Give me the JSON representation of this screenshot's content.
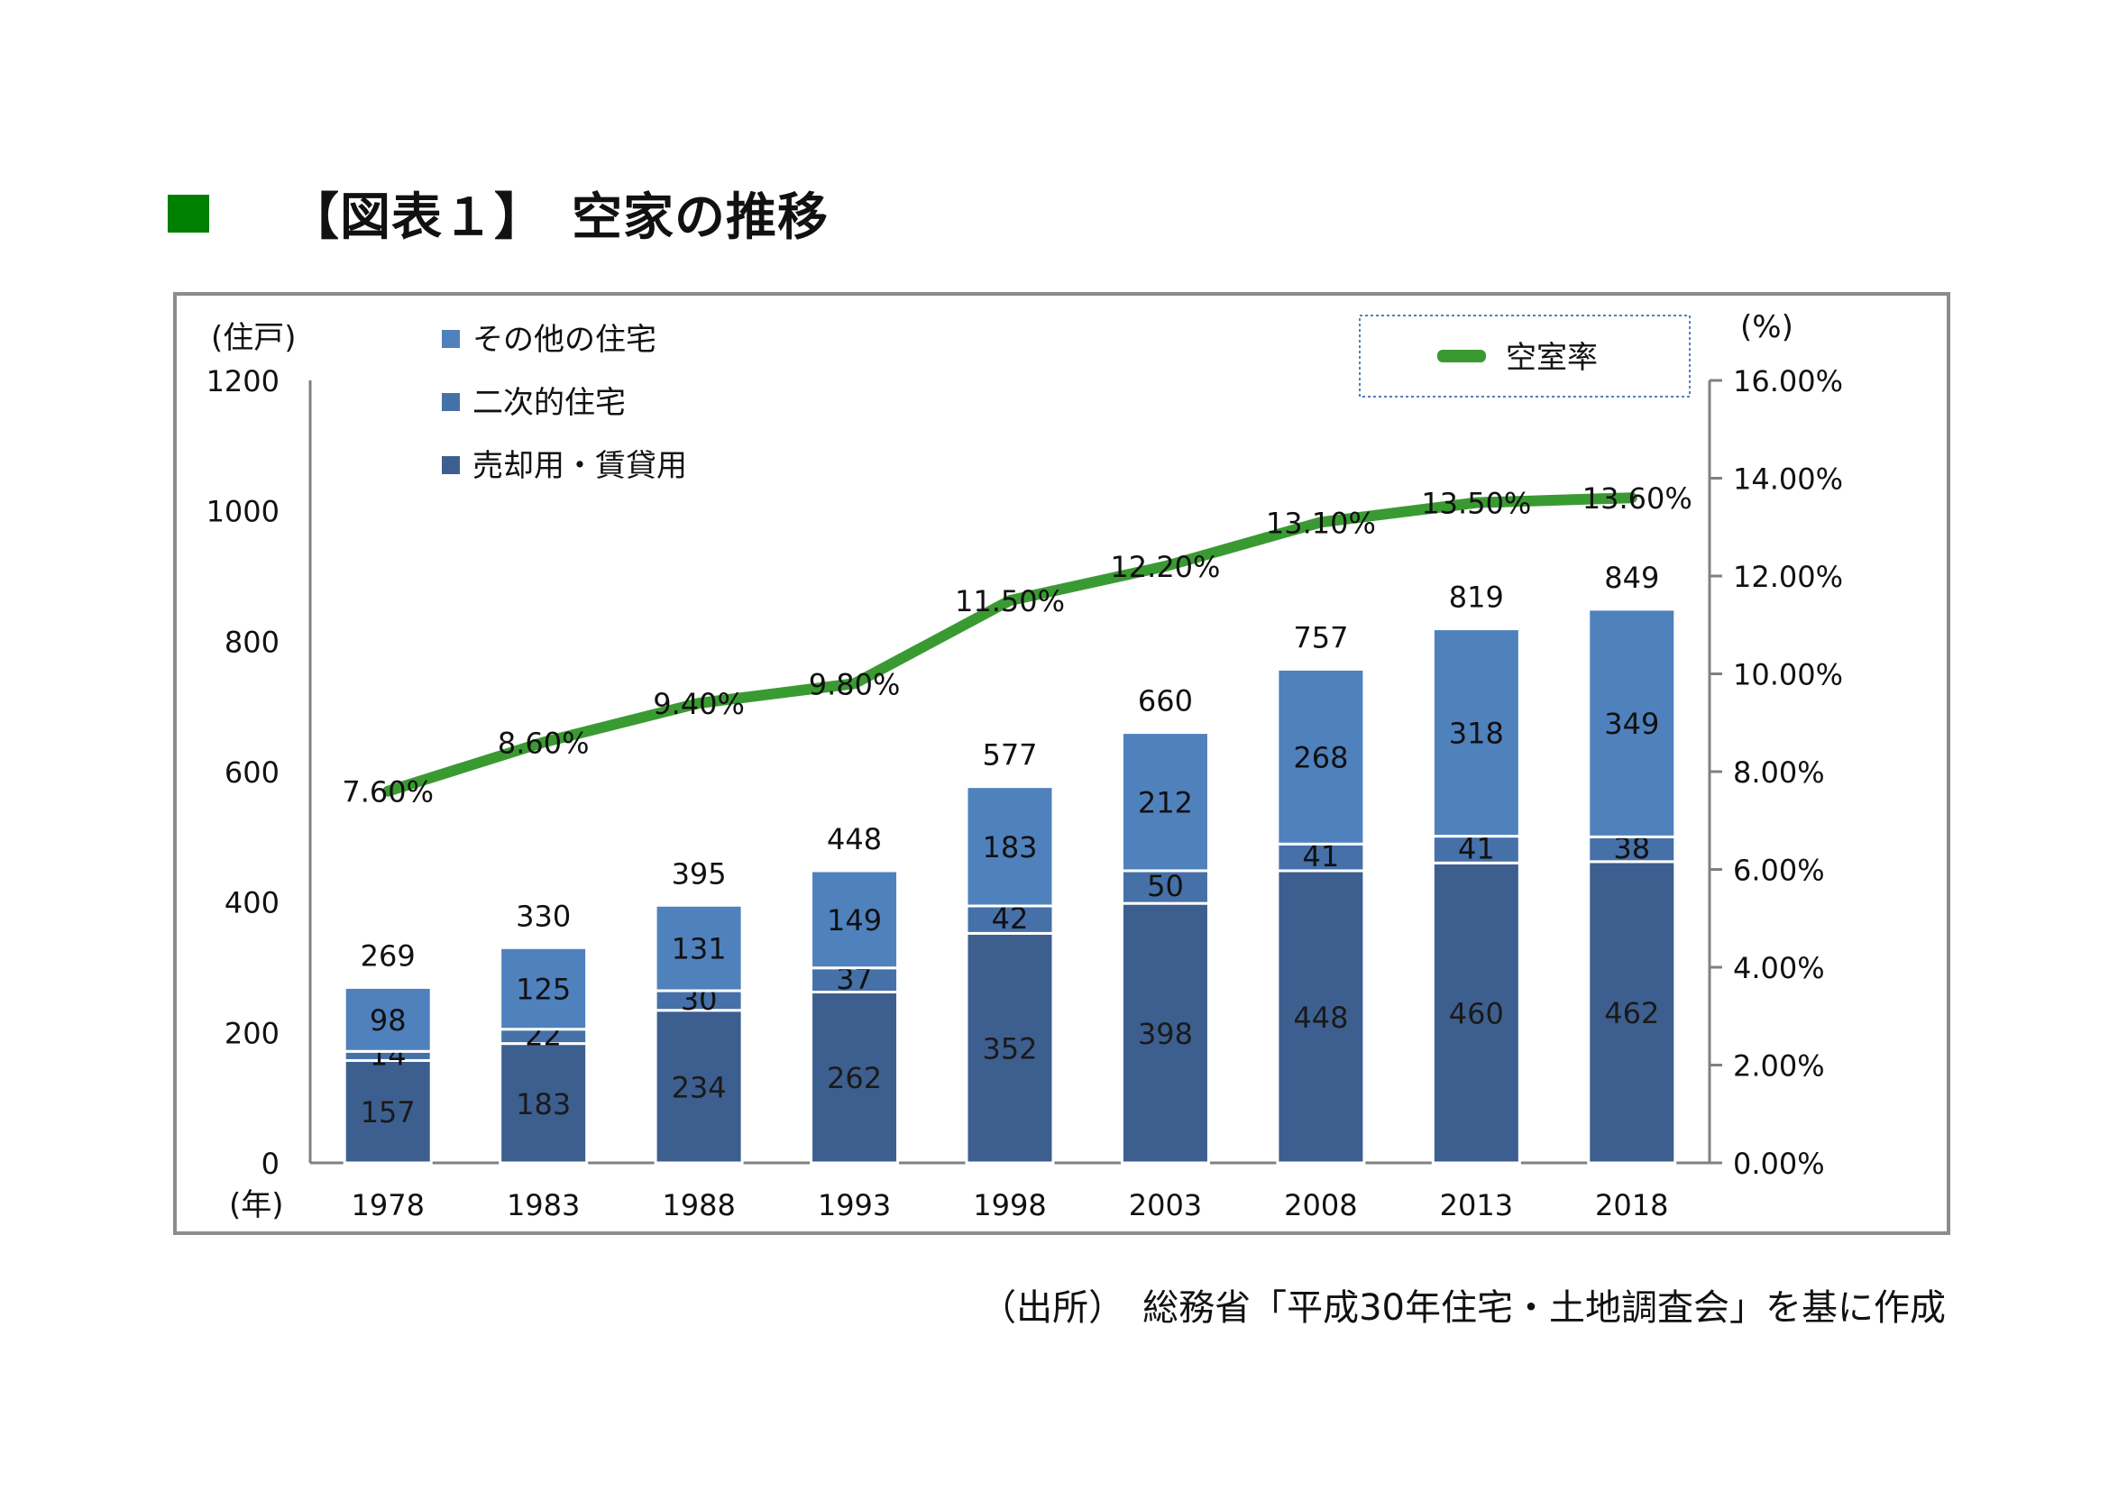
{
  "title": "【図表１】　空家の推移",
  "source": "（出所）　総務省「平成30年住宅・土地調査会」を基に作成",
  "colors": {
    "title_marker": "#008000",
    "sale_rental": "#3d5f8f",
    "secondary": "#4670a8",
    "other": "#4f81bd",
    "vacancy_rate_line": "#3a9a32",
    "frame": "#8c8c8c",
    "axis": "#808080"
  },
  "chart_data": {
    "type": "bar",
    "stacked": true,
    "categories": [
      "1978",
      "1983",
      "1988",
      "1993",
      "1998",
      "2003",
      "2008",
      "2013",
      "2018"
    ],
    "xlabel": "(年)",
    "ylabel": "(住戸)",
    "y2label": "(%)",
    "ylim": [
      0,
      1200
    ],
    "yticks": [
      "0",
      "200",
      "400",
      "600",
      "800",
      "1000",
      "1200"
    ],
    "y2lim": [
      0,
      16
    ],
    "y2ticks": [
      "0.00%",
      "2.00%",
      "4.00%",
      "6.00%",
      "8.00%",
      "10.00%",
      "12.00%",
      "14.00%",
      "16.00%"
    ],
    "grid": false,
    "legend_left": {
      "placement": "top-left",
      "entries": [
        "その他の住宅",
        "二次的住宅",
        "売却用・賃貸用"
      ]
    },
    "legend_right": {
      "placement": "top-right",
      "entries": [
        "空室率"
      ]
    },
    "series": [
      {
        "name": "売却用・賃貸用",
        "type": "bar",
        "values": [
          157,
          183,
          234,
          262,
          352,
          398,
          448,
          460,
          462
        ]
      },
      {
        "name": "二次的住宅",
        "type": "bar",
        "values": [
          14,
          22,
          30,
          37,
          42,
          50,
          41,
          41,
          38
        ]
      },
      {
        "name": "その他の住宅",
        "type": "bar",
        "values": [
          98,
          125,
          131,
          149,
          183,
          212,
          268,
          318,
          349
        ]
      },
      {
        "name": "空室率",
        "type": "line",
        "axis": "right",
        "values": [
          7.6,
          8.6,
          9.4,
          9.8,
          11.5,
          12.2,
          13.1,
          13.5,
          13.6
        ],
        "labels": [
          "7.60%",
          "8.60%",
          "9.40%",
          "9.80%",
          "11.50%",
          "12.20%",
          "13.10%",
          "13.50%",
          "13.60%"
        ]
      }
    ],
    "totals": [
      269,
      330,
      395,
      448,
      577,
      660,
      757,
      819,
      849
    ]
  }
}
